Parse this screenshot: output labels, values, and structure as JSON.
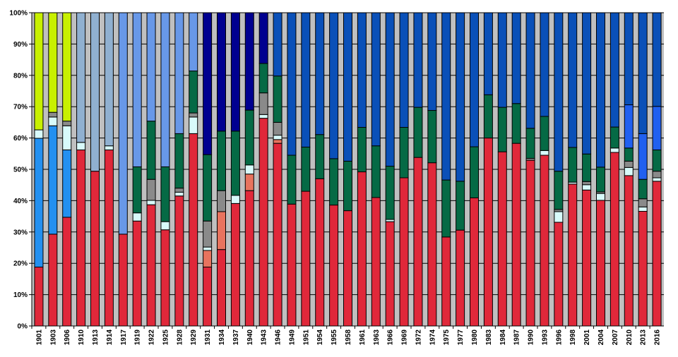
{
  "chart_data": {
    "type": "bar",
    "stacked": true,
    "normalized_100_percent": true,
    "title": "",
    "xlabel": "",
    "ylabel": "",
    "ylim": [
      0,
      100
    ],
    "grid": "horizontal",
    "legend": "none",
    "plot_background": "#c0c0c0",
    "y_ticks": [
      "0%",
      "10%",
      "20%",
      "30%",
      "40%",
      "50%",
      "60%",
      "70%",
      "80%",
      "90%",
      "100%"
    ],
    "categories": [
      "1901",
      "1903",
      "1906",
      "1910",
      "1913",
      "1914",
      "1917",
      "1919",
      "1922",
      "1925",
      "1928",
      "1929",
      "1931",
      "1934",
      "1937",
      "1940",
      "1943",
      "1946",
      "1949",
      "1951",
      "1954",
      "1955",
      "1958",
      "1961",
      "1963",
      "1966",
      "1969",
      "1972",
      "1974",
      "1975",
      "1977",
      "1980",
      "1983",
      "1984",
      "1987",
      "1990",
      "1993",
      "1996",
      "1998",
      "2001",
      "2004",
      "2007",
      "2010",
      "2013",
      "2016"
    ],
    "series": [
      {
        "color": "#e0283a",
        "values": {
          "1901": 18.8,
          "1903": 29.3,
          "1906": 34.7,
          "1910": 56.2,
          "1913": 49.4,
          "1914": 56.2,
          "1917": 29.3,
          "1919": 33.5,
          "1922": 38.7,
          "1925": 30.7,
          "1928": 41.5,
          "1929": 61.4,
          "1931": 18.8,
          "1934": 24.4,
          "1937": 39.1,
          "1940": 43.2,
          "1943": 66.3,
          "1946": 58.3,
          "1949": 38.9,
          "1951": 43.0,
          "1954": 47.0,
          "1955": 38.6,
          "1958": 36.8,
          "1961": 49.2,
          "1963": 41.0,
          "1966": 33.3,
          "1969": 47.3,
          "1972": 53.8,
          "1974": 52.1,
          "1975": 28.4,
          "1977": 30.6,
          "1980": 40.9,
          "1983": 60.0,
          "1984": 55.6,
          "1987": 58.3,
          "1990": 52.9,
          "1993": 54.5,
          "1996": 33.1,
          "1998": 45.3,
          "2001": 43.4,
          "2004": 40.1,
          "2007": 55.4,
          "2010": 48.0,
          "2013": 36.6,
          "2016": 46.2
        }
      },
      {
        "color": "#e8735e",
        "values": {
          "1931": 5.3,
          "1934": 12.1,
          "1940": 5.3,
          "1946": 1.2
        }
      },
      {
        "color": "#2390f0",
        "values": {
          "1901": 41.1,
          "1903": 34.6,
          "1906": 21.5
        }
      },
      {
        "color": "#d8fafa",
        "values": {
          "1901": 2.7,
          "1903": 2.8,
          "1906": 7.7,
          "1910": 2.4,
          "1914": 1.3,
          "1919": 2.6,
          "1922": 1.4,
          "1925": 2.6,
          "1928": 1.2,
          "1929": 5.3,
          "1931": 1.1,
          "1937": 2.6,
          "1940": 2.9,
          "1943": 1.2,
          "1946": 1.4,
          "1966": 0.7,
          "1993": 1.5,
          "1996": 3.4,
          "1998": 0.6,
          "2001": 1.7,
          "2004": 2.2,
          "2007": 1.4,
          "2010": 2.6,
          "2013": 1.4,
          "2016": 1.1
        }
      },
      {
        "color": "#8a8a8a",
        "values": {
          "1903": 1.5,
          "1906": 1.5,
          "1922": 6.7,
          "1928": 1.3,
          "1929": 1.3,
          "1931": 8.3,
          "1934": 6.7,
          "1943": 6.9,
          "1946": 4.1,
          "1990": 0.6,
          "1996": 0.7,
          "2001": 1.0,
          "2004": 0.5,
          "2010": 2.0,
          "2013": 2.6,
          "2016": 2.1
        }
      },
      {
        "color": "#056a45",
        "values": {
          "1919": 14.7,
          "1922": 18.6,
          "1925": 17.5,
          "1928": 17.4,
          "1929": 13.4,
          "1931": 21.2,
          "1934": 19.0,
          "1937": 20.5,
          "1940": 17.5,
          "1943": 9.4,
          "1946": 14.8,
          "1949": 15.6,
          "1951": 14.1,
          "1954": 14.1,
          "1955": 14.8,
          "1958": 15.8,
          "1961": 14.2,
          "1963": 16.5,
          "1966": 17.0,
          "1969": 16.1,
          "1972": 16.0,
          "1974": 16.7,
          "1975": 18.2,
          "1977": 15.6,
          "1980": 16.3,
          "1983": 13.8,
          "1984": 14.2,
          "1987": 12.7,
          "1990": 9.6,
          "1993": 10.9,
          "1996": 12.2,
          "1998": 11.1,
          "2001": 8.8,
          "2004": 7.9,
          "2007": 6.7,
          "2010": 4.2,
          "2013": 6.2,
          "2016": 6.8
        }
      },
      {
        "color": "#2060f0",
        "values": {
          "2010": 13.8,
          "2013": 14.6,
          "2016": 13.9
        }
      },
      {
        "color": "#c8f000",
        "values": {
          "1901": 37.4,
          "1903": 31.8,
          "1906": 34.6
        }
      },
      {
        "color": "#90b0d0",
        "values": {
          "1910": 41.4,
          "1913": 50.6,
          "1914": 42.5
        }
      },
      {
        "color": "#6898e8",
        "values": {
          "1917": 70.7,
          "1919": 49.2,
          "1922": 34.6,
          "1925": 49.2,
          "1928": 38.6,
          "1929": 18.6
        }
      },
      {
        "color": "#000090",
        "values": {
          "1931": 45.3,
          "1934": 37.8,
          "1937": 37.8,
          "1940": 31.1,
          "1943": 16.2
        }
      },
      {
        "color": "#0a50b8",
        "values": {
          "1946": 20.2,
          "1949": 45.5,
          "1951": 42.9,
          "1954": 38.9,
          "1955": 46.6,
          "1958": 47.4,
          "1961": 36.6,
          "1963": 42.5,
          "1966": 49.0,
          "1969": 36.6,
          "1972": 30.2,
          "1974": 31.2,
          "1975": 53.4,
          "1977": 53.8,
          "1980": 42.8,
          "1983": 26.2,
          "1984": 30.2,
          "1987": 29.0,
          "1990": 36.9,
          "1993": 33.1,
          "1996": 50.6,
          "1998": 43.0,
          "2001": 45.1,
          "2004": 49.3,
          "2007": 36.5,
          "2010": 29.4,
          "2013": 38.6,
          "2016": 29.9
        }
      }
    ]
  }
}
